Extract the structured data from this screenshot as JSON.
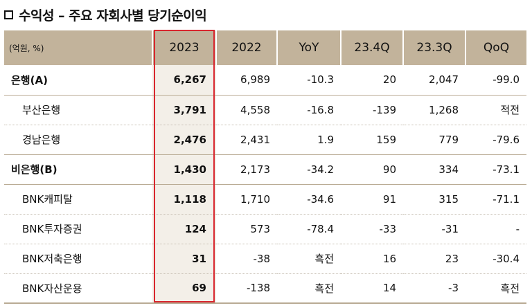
{
  "title": "수익성 – 주요 자회사별 당기순이익",
  "table": {
    "unit_label": "(억원, %)",
    "headers": [
      "2023",
      "2022",
      "YoY",
      "23.4Q",
      "23.3Q",
      "QoQ"
    ],
    "rows": [
      {
        "label": "은행(A)",
        "type": "main",
        "values": [
          "6,267",
          "6,989",
          "-10.3",
          "20",
          "2,047",
          "-99.0"
        ]
      },
      {
        "label": "부산은행",
        "type": "sub",
        "values": [
          "3,791",
          "4,558",
          "-16.8",
          "-139",
          "1,268",
          "적전"
        ]
      },
      {
        "label": "경남은행",
        "type": "sub",
        "values": [
          "2,476",
          "2,431",
          "1.9",
          "159",
          "779",
          "-79.6"
        ]
      },
      {
        "label": "비은행(B)",
        "type": "main",
        "values": [
          "1,430",
          "2,173",
          "-34.2",
          "90",
          "334",
          "-73.1"
        ]
      },
      {
        "label": "BNK캐피탈",
        "type": "sub",
        "values": [
          "1,118",
          "1,710",
          "-34.6",
          "91",
          "315",
          "-71.1"
        ]
      },
      {
        "label": "BNK투자증권",
        "type": "sub",
        "values": [
          "124",
          "573",
          "-78.4",
          "-33",
          "-31",
          "-"
        ]
      },
      {
        "label": "BNK저축은행",
        "type": "sub",
        "values": [
          "31",
          "-38",
          "흑전",
          "16",
          "23",
          "-30.4"
        ]
      },
      {
        "label": "BNK자산운용",
        "type": "sub",
        "values": [
          "69",
          "-138",
          "흑전",
          "14",
          "-3",
          "흑전"
        ]
      }
    ]
  },
  "colors": {
    "header_bg": "#c2b39b",
    "highlight_border": "#d8262e",
    "highlight_bg": "#f3efe8"
  },
  "icons": {
    "title_marker": "square-outline-icon"
  }
}
